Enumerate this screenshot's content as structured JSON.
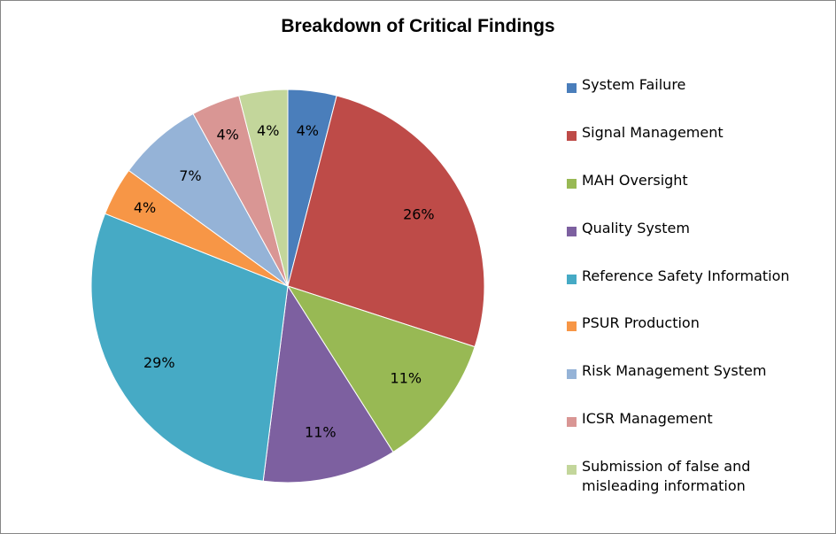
{
  "chart_data": {
    "type": "pie",
    "title": "Breakdown of Critical Findings",
    "start_angle_deg": 0,
    "direction": "clockwise",
    "slices": [
      {
        "label": "System Failure",
        "value": 4,
        "display": "4%",
        "color": "#4A7EBB"
      },
      {
        "label": "Signal Management",
        "value": 26,
        "display": "26%",
        "color": "#BE4B48"
      },
      {
        "label": "MAH Oversight",
        "value": 11,
        "display": "11%",
        "color": "#98B954"
      },
      {
        "label": "Quality System",
        "value": 11,
        "display": "11%",
        "color": "#7D60A0"
      },
      {
        "label": "Reference Safety Information",
        "value": 29,
        "display": "29%",
        "color": "#46AAC5"
      },
      {
        "label": "PSUR Production",
        "value": 4,
        "display": "4%",
        "color": "#F79646"
      },
      {
        "label": "Risk Management System",
        "value": 7,
        "display": "7%",
        "color": "#95B3D7"
      },
      {
        "label": "ICSR Management",
        "value": 4,
        "display": "4%",
        "color": "#D99694"
      },
      {
        "label": "Submission of false and\nmisleading information",
        "value": 4,
        "display": "4%",
        "color": "#C3D69B"
      }
    ],
    "legend_position": "right"
  }
}
